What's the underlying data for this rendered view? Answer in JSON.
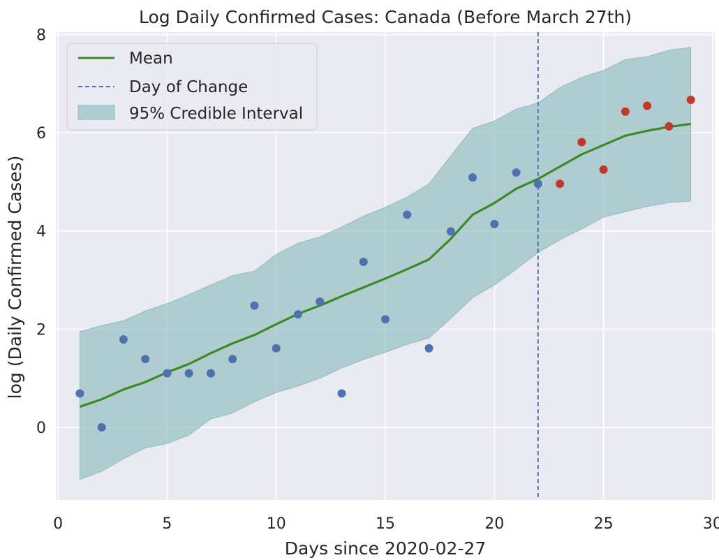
{
  "chart_data": {
    "type": "scatter",
    "title": "Log Daily Confirmed Cases: Canada (Before March 27th)",
    "xlabel": "Days since 2020-02-27",
    "ylabel": "log (Daily Confirmed Cases)",
    "xlim": [
      -0.1,
      30.1
    ],
    "ylim": [
      -1.48,
      8.05
    ],
    "x_ticks": [
      0,
      5,
      10,
      15,
      20,
      25,
      30
    ],
    "y_ticks": [
      0,
      2,
      4,
      6,
      8
    ],
    "grid": true,
    "legend_position": "top-left",
    "legend": {
      "mean": "Mean",
      "change": "Day of Change",
      "interval": "95% Credible Interval"
    },
    "day_of_change": 22,
    "mean": {
      "x": [
        1,
        2,
        3,
        4,
        5,
        6,
        7,
        8,
        9,
        10,
        11,
        12,
        13,
        14,
        15,
        16,
        17,
        18,
        19,
        20,
        21,
        22,
        23,
        24,
        25,
        26,
        27,
        28,
        29
      ],
      "values": [
        0.42,
        0.57,
        0.77,
        0.92,
        1.12,
        1.29,
        1.51,
        1.71,
        1.88,
        2.1,
        2.31,
        2.48,
        2.67,
        2.85,
        3.03,
        3.22,
        3.42,
        3.84,
        4.33,
        4.57,
        4.86,
        5.06,
        5.31,
        5.56,
        5.75,
        5.94,
        6.04,
        6.12,
        6.18
      ]
    },
    "interval": {
      "x": [
        1,
        2,
        3,
        4,
        5,
        6,
        7,
        8,
        9,
        10,
        11,
        12,
        13,
        14,
        15,
        16,
        17,
        18,
        19,
        20,
        21,
        22,
        23,
        24,
        25,
        26,
        27,
        28,
        29
      ],
      "upper": [
        1.95,
        2.07,
        2.17,
        2.37,
        2.52,
        2.7,
        2.9,
        3.09,
        3.18,
        3.52,
        3.75,
        3.88,
        4.08,
        4.3,
        4.48,
        4.69,
        4.96,
        5.53,
        6.09,
        6.24,
        6.48,
        6.61,
        6.92,
        7.13,
        7.27,
        7.49,
        7.55,
        7.68,
        7.74
      ],
      "lower": [
        -1.06,
        -0.9,
        -0.64,
        -0.42,
        -0.33,
        -0.16,
        0.17,
        0.29,
        0.52,
        0.71,
        0.84,
        1.0,
        1.21,
        1.38,
        1.53,
        1.69,
        1.82,
        2.22,
        2.64,
        2.9,
        3.22,
        3.56,
        3.82,
        4.04,
        4.28,
        4.39,
        4.5,
        4.58,
        4.61
      ]
    },
    "observed_before": {
      "color": "#4c72b0",
      "x": [
        1,
        2,
        3,
        4,
        5,
        6,
        7,
        8,
        9,
        10,
        11,
        12,
        13,
        14,
        15,
        16,
        17,
        18,
        19,
        20,
        21,
        22
      ],
      "values": [
        0.69,
        0.0,
        1.79,
        1.39,
        1.1,
        1.1,
        1.1,
        1.39,
        2.48,
        1.61,
        2.3,
        2.56,
        0.69,
        3.37,
        2.2,
        4.33,
        1.61,
        3.99,
        5.09,
        4.14,
        5.19,
        4.96
      ]
    },
    "observed_after": {
      "color": "#c0392b",
      "x": [
        23,
        24,
        25,
        26,
        27,
        28,
        29
      ],
      "values": [
        4.96,
        5.81,
        5.25,
        6.43,
        6.55,
        6.13,
        6.67
      ]
    },
    "colors": {
      "mean": "#3b8a23",
      "change": "#4c72b0",
      "interval_fill": "#8fbcbf",
      "background": "#eaeaf2"
    }
  }
}
